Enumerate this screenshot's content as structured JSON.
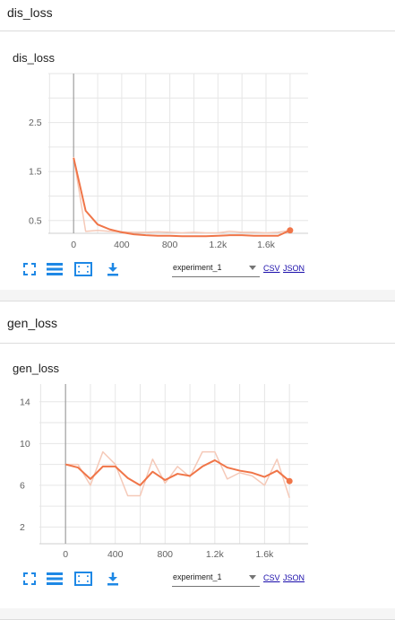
{
  "sections": [
    {
      "header": "dis_loss",
      "card_title": "dis_loss",
      "run": "experiment_1",
      "csv_label": "CSV",
      "json_label": "JSON",
      "chart_data": {
        "type": "line",
        "title": "dis_loss",
        "xlim": [
          -210,
          1950
        ],
        "ylim": [
          0.24,
          3.5
        ],
        "x_ticks": [
          0,
          400,
          800,
          1200,
          1600
        ],
        "x_tick_labels": [
          "0",
          "400",
          "800",
          "1.2k",
          "1.6k"
        ],
        "y_ticks": [
          0.5,
          1.5,
          2.5
        ],
        "y_tick_labels": [
          "0.5",
          "1.5",
          "2.5"
        ],
        "grid": true,
        "series": [
          {
            "role": "raw",
            "color": "#f5c9b8",
            "x": [
              0,
              100,
              200,
              300,
              400,
              500,
              600,
              700,
              800,
              900,
              1000,
              1100,
              1200,
              1300,
              1400,
              1500,
              1600,
              1700,
              1800
            ],
            "y": [
              1.8,
              0.28,
              0.3,
              0.28,
              0.27,
              0.26,
              0.26,
              0.27,
              0.26,
              0.25,
              0.26,
              0.25,
              0.25,
              0.28,
              0.26,
              0.26,
              0.25,
              0.26,
              0.3
            ]
          },
          {
            "role": "smoothed",
            "color": "#f07548",
            "x": [
              0,
              100,
              200,
              300,
              400,
              500,
              600,
              700,
              800,
              900,
              1000,
              1100,
              1200,
              1300,
              1400,
              1500,
              1600,
              1700,
              1800
            ],
            "y": [
              1.78,
              0.7,
              0.42,
              0.32,
              0.26,
              0.22,
              0.2,
              0.19,
              0.19,
              0.18,
              0.18,
              0.18,
              0.19,
              0.2,
              0.2,
              0.19,
              0.19,
              0.19,
              0.3
            ]
          }
        ]
      }
    },
    {
      "header": "gen_loss",
      "card_title": "gen_loss",
      "run": "experiment_1",
      "csv_label": "CSV",
      "json_label": "JSON",
      "chart_data": {
        "type": "line",
        "title": "gen_loss",
        "xlim": [
          -210,
          1950
        ],
        "ylim": [
          0.4,
          15.7
        ],
        "x_ticks": [
          0,
          400,
          800,
          1200,
          1600
        ],
        "x_tick_labels": [
          "0",
          "400",
          "800",
          "1.2k",
          "1.6k"
        ],
        "y_ticks": [
          2,
          6,
          10,
          14
        ],
        "y_tick_labels": [
          "2",
          "6",
          "10",
          "14"
        ],
        "grid": true,
        "series": [
          {
            "role": "raw",
            "color": "#f5c9b8",
            "x": [
              0,
              100,
              200,
              300,
              400,
              500,
              600,
              700,
              800,
              900,
              1000,
              1100,
              1200,
              1300,
              1400,
              1500,
              1600,
              1700,
              1800
            ],
            "y": [
              8.0,
              8.0,
              6.0,
              9.2,
              8.0,
              5.0,
              5.0,
              8.5,
              6.2,
              7.8,
              6.8,
              9.2,
              9.2,
              6.6,
              7.2,
              6.9,
              6.0,
              8.5,
              4.8
            ]
          },
          {
            "role": "smoothed",
            "color": "#f07548",
            "x": [
              0,
              100,
              200,
              300,
              400,
              500,
              600,
              700,
              800,
              900,
              1000,
              1100,
              1200,
              1300,
              1400,
              1500,
              1600,
              1700,
              1800
            ],
            "y": [
              8.0,
              7.7,
              6.6,
              7.8,
              7.8,
              6.7,
              6.0,
              7.3,
              6.5,
              7.1,
              6.9,
              7.8,
              8.4,
              7.7,
              7.4,
              7.2,
              6.8,
              7.4,
              6.4
            ]
          }
        ]
      }
    }
  ]
}
